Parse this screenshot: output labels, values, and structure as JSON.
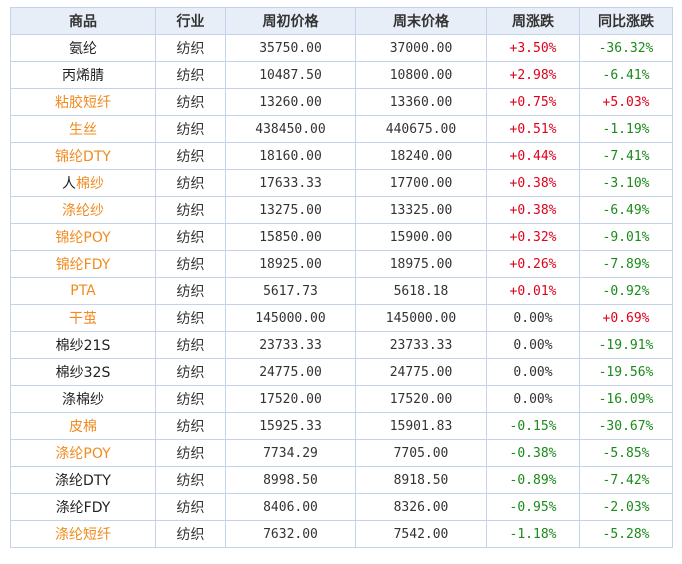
{
  "colors": {
    "header_bg": "#e8eef7",
    "border": "#c5d3ea",
    "link": "#f28a1e",
    "up": "#e0001b",
    "down": "#1a8a1a",
    "neutral": "#333333"
  },
  "headers": [
    "商品",
    "行业",
    "周初价格",
    "周末价格",
    "周涨跌",
    "同比涨跌"
  ],
  "rows": [
    {
      "name": "氨纶",
      "name_link": false,
      "industry": "纺织",
      "start_price": "35750.00",
      "end_price": "37000.00",
      "weekly": "+3.50%",
      "weekly_dir": "up",
      "yoy": "-36.32%",
      "yoy_dir": "down"
    },
    {
      "name": "丙烯腈",
      "name_link": false,
      "industry": "纺织",
      "start_price": "10487.50",
      "end_price": "10800.00",
      "weekly": "+2.98%",
      "weekly_dir": "up",
      "yoy": "-6.41%",
      "yoy_dir": "down"
    },
    {
      "name": "粘胶短纤",
      "name_link": true,
      "industry": "纺织",
      "start_price": "13260.00",
      "end_price": "13360.00",
      "weekly": "+0.75%",
      "weekly_dir": "up",
      "yoy": "+5.03%",
      "yoy_dir": "up"
    },
    {
      "name": "生丝",
      "name_link": true,
      "industry": "纺织",
      "start_price": "438450.00",
      "end_price": "440675.00",
      "weekly": "+0.51%",
      "weekly_dir": "up",
      "yoy": "-1.19%",
      "yoy_dir": "down"
    },
    {
      "name": "锦纶DTY",
      "name_link": true,
      "industry": "纺织",
      "start_price": "18160.00",
      "end_price": "18240.00",
      "weekly": "+0.44%",
      "weekly_dir": "up",
      "yoy": "-7.41%",
      "yoy_dir": "down"
    },
    {
      "name_prefix": "人",
      "name": "棉纱",
      "name_link": true,
      "industry": "纺织",
      "start_price": "17633.33",
      "end_price": "17700.00",
      "weekly": "+0.38%",
      "weekly_dir": "up",
      "yoy": "-3.10%",
      "yoy_dir": "down"
    },
    {
      "name": "涤纶纱",
      "name_link": true,
      "industry": "纺织",
      "start_price": "13275.00",
      "end_price": "13325.00",
      "weekly": "+0.38%",
      "weekly_dir": "up",
      "yoy": "-6.49%",
      "yoy_dir": "down"
    },
    {
      "name": "锦纶POY",
      "name_link": true,
      "industry": "纺织",
      "start_price": "15850.00",
      "end_price": "15900.00",
      "weekly": "+0.32%",
      "weekly_dir": "up",
      "yoy": "-9.01%",
      "yoy_dir": "down"
    },
    {
      "name": "锦纶FDY",
      "name_link": true,
      "industry": "纺织",
      "start_price": "18925.00",
      "end_price": "18975.00",
      "weekly": "+0.26%",
      "weekly_dir": "up",
      "yoy": "-7.89%",
      "yoy_dir": "down"
    },
    {
      "name": "PTA",
      "name_link": true,
      "industry": "纺织",
      "start_price": "5617.73",
      "end_price": "5618.18",
      "weekly": "+0.01%",
      "weekly_dir": "up",
      "yoy": "-0.92%",
      "yoy_dir": "down"
    },
    {
      "name": "干茧",
      "name_link": true,
      "industry": "纺织",
      "start_price": "145000.00",
      "end_price": "145000.00",
      "weekly": "0.00%",
      "weekly_dir": "flat",
      "yoy": "+0.69%",
      "yoy_dir": "up"
    },
    {
      "name": "棉纱21S",
      "name_link": false,
      "industry": "纺织",
      "start_price": "23733.33",
      "end_price": "23733.33",
      "weekly": "0.00%",
      "weekly_dir": "flat",
      "yoy": "-19.91%",
      "yoy_dir": "down"
    },
    {
      "name": "棉纱32S",
      "name_link": false,
      "industry": "纺织",
      "start_price": "24775.00",
      "end_price": "24775.00",
      "weekly": "0.00%",
      "weekly_dir": "flat",
      "yoy": "-19.56%",
      "yoy_dir": "down"
    },
    {
      "name": "涤棉纱",
      "name_link": false,
      "industry": "纺织",
      "start_price": "17520.00",
      "end_price": "17520.00",
      "weekly": "0.00%",
      "weekly_dir": "flat",
      "yoy": "-16.09%",
      "yoy_dir": "down"
    },
    {
      "name": "皮棉",
      "name_link": true,
      "industry": "纺织",
      "start_price": "15925.33",
      "end_price": "15901.83",
      "weekly": "-0.15%",
      "weekly_dir": "down",
      "yoy": "-30.67%",
      "yoy_dir": "down"
    },
    {
      "name": "涤纶POY",
      "name_link": true,
      "industry": "纺织",
      "start_price": "7734.29",
      "end_price": "7705.00",
      "weekly": "-0.38%",
      "weekly_dir": "down",
      "yoy": "-5.85%",
      "yoy_dir": "down"
    },
    {
      "name": "涤纶DTY",
      "name_link": false,
      "industry": "纺织",
      "start_price": "8998.50",
      "end_price": "8918.50",
      "weekly": "-0.89%",
      "weekly_dir": "down",
      "yoy": "-7.42%",
      "yoy_dir": "down"
    },
    {
      "name": "涤纶FDY",
      "name_link": false,
      "industry": "纺织",
      "start_price": "8406.00",
      "end_price": "8326.00",
      "weekly": "-0.95%",
      "weekly_dir": "down",
      "yoy": "-2.03%",
      "yoy_dir": "down"
    },
    {
      "name": "涤纶短纤",
      "name_link": true,
      "industry": "纺织",
      "start_price": "7632.00",
      "end_price": "7542.00",
      "weekly": "-1.18%",
      "weekly_dir": "down",
      "yoy": "-5.28%",
      "yoy_dir": "down"
    }
  ]
}
